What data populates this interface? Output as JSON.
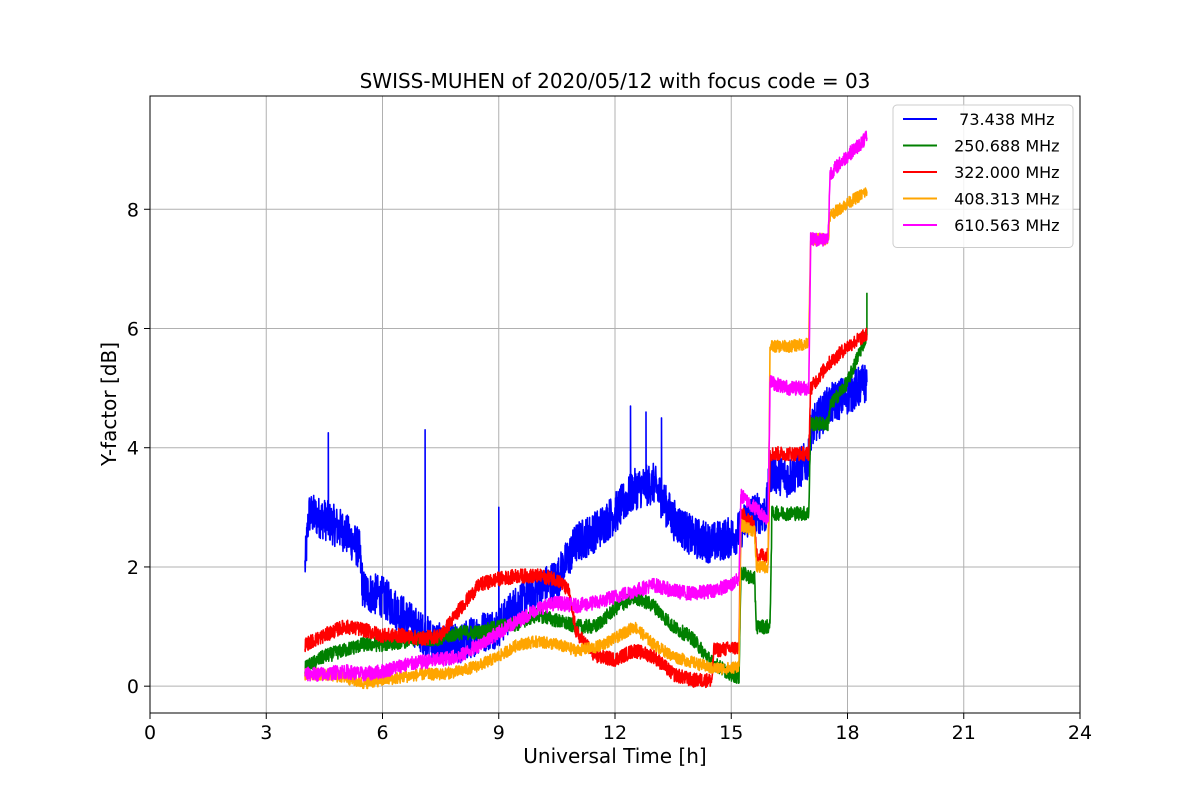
{
  "chart_data": {
    "type": "line",
    "title": "SWISS-MUHEN of 2020/05/12 with focus code = 03",
    "xlabel": "Universal Time [h]",
    "ylabel": "Y-factor [dB]",
    "xlim": [
      0,
      24
    ],
    "ylim": [
      -0.45,
      9.9
    ],
    "xticks": [
      0,
      3,
      6,
      9,
      12,
      15,
      18,
      21,
      24
    ],
    "yticks": [
      0,
      2,
      4,
      6,
      8
    ],
    "grid": true,
    "legend_position": "top-right",
    "series": [
      {
        "name": "  73.438 MHz",
        "color": "#0000ff",
        "noise": 0.35,
        "x": [
          4.0,
          4.1,
          4.5,
          5.0,
          5.4,
          5.5,
          6.0,
          6.5,
          7.0,
          7.5,
          8.0,
          8.5,
          9.0,
          9.5,
          10.0,
          10.5,
          11.0,
          11.5,
          12.0,
          12.5,
          13.0,
          13.5,
          14.0,
          14.5,
          15.0,
          15.2,
          15.5,
          15.9,
          16.0,
          16.5,
          17.0,
          17.05,
          17.5,
          18.0,
          18.5
        ],
        "y": [
          2.0,
          2.9,
          2.8,
          2.6,
          2.3,
          1.6,
          1.5,
          1.2,
          0.9,
          0.7,
          0.7,
          0.9,
          1.0,
          1.4,
          1.6,
          1.8,
          2.4,
          2.6,
          2.9,
          3.3,
          3.4,
          2.8,
          2.5,
          2.4,
          2.5,
          2.6,
          2.9,
          2.9,
          3.6,
          3.5,
          3.8,
          4.3,
          4.7,
          4.9,
          5.1
        ],
        "spikes": [
          [
            4.6,
            4.25
          ],
          [
            7.1,
            4.3
          ],
          [
            9.0,
            3.0
          ],
          [
            12.4,
            4.7
          ],
          [
            12.8,
            4.6
          ],
          [
            13.2,
            4.5
          ]
        ]
      },
      {
        "name": " 250.688 MHz",
        "color": "#008000",
        "noise": 0.12,
        "x": [
          4.0,
          4.5,
          5.0,
          5.5,
          6.0,
          6.5,
          7.0,
          7.5,
          8.0,
          8.5,
          9.0,
          9.5,
          10.0,
          10.5,
          11.0,
          11.5,
          12.0,
          12.5,
          13.0,
          13.5,
          14.0,
          14.5,
          15.0,
          15.2,
          15.25,
          15.6,
          15.65,
          16.0,
          16.05,
          16.5,
          17.0,
          17.05,
          17.5,
          17.55,
          18.0,
          18.5
        ],
        "y": [
          0.3,
          0.5,
          0.6,
          0.7,
          0.7,
          0.75,
          0.8,
          0.8,
          0.9,
          0.9,
          1.0,
          1.05,
          1.2,
          1.1,
          1.0,
          1.0,
          1.3,
          1.5,
          1.35,
          1.0,
          0.8,
          0.4,
          0.2,
          0.15,
          1.9,
          1.8,
          1.0,
          1.0,
          2.9,
          2.9,
          2.9,
          4.4,
          4.4,
          4.7,
          5.1,
          5.9
        ],
        "spikes": [
          [
            18.5,
            6.6
          ]
        ]
      },
      {
        "name": " 322.000 MHz",
        "color": "#ff0000",
        "noise": 0.12,
        "x": [
          4.0,
          4.5,
          5.0,
          5.5,
          6.0,
          6.5,
          7.0,
          7.5,
          8.0,
          8.5,
          9.0,
          9.5,
          10.0,
          10.5,
          10.8,
          11.0,
          11.5,
          12.0,
          12.5,
          13.0,
          13.5,
          14.0,
          14.5,
          14.55,
          15.2,
          15.25,
          15.6,
          15.65,
          15.95,
          16.0,
          16.5,
          17.0,
          17.05,
          17.5,
          18.0,
          18.5
        ],
        "y": [
          0.7,
          0.85,
          1.0,
          0.95,
          0.85,
          0.85,
          0.8,
          0.85,
          1.3,
          1.7,
          1.8,
          1.85,
          1.85,
          1.8,
          1.6,
          0.9,
          0.5,
          0.45,
          0.6,
          0.5,
          0.2,
          0.1,
          0.1,
          0.6,
          0.65,
          2.9,
          2.7,
          2.2,
          2.2,
          3.9,
          3.9,
          3.9,
          5.0,
          5.4,
          5.7,
          5.9
        ],
        "spikes": []
      },
      {
        "name": " 408.313 MHz",
        "color": "#ffa500",
        "noise": 0.1,
        "x": [
          4.0,
          4.5,
          5.0,
          5.5,
          6.0,
          6.5,
          7.0,
          7.5,
          8.0,
          8.5,
          9.0,
          9.5,
          10.0,
          10.5,
          11.0,
          11.5,
          12.0,
          12.5,
          13.0,
          13.5,
          14.0,
          14.5,
          15.0,
          15.2,
          15.25,
          15.6,
          15.65,
          15.95,
          16.0,
          16.5,
          17.0,
          17.05,
          17.5,
          17.55,
          18.0,
          18.5
        ],
        "y": [
          0.2,
          0.2,
          0.15,
          0.05,
          0.1,
          0.15,
          0.2,
          0.2,
          0.25,
          0.35,
          0.5,
          0.7,
          0.75,
          0.7,
          0.6,
          0.65,
          0.8,
          1.0,
          0.7,
          0.5,
          0.4,
          0.3,
          0.3,
          0.35,
          2.7,
          2.6,
          2.0,
          2.0,
          5.7,
          5.7,
          5.75,
          7.5,
          7.5,
          7.9,
          8.1,
          8.3
        ],
        "spikes": []
      },
      {
        "name": " 610.563 MHz",
        "color": "#ff00ff",
        "noise": 0.12,
        "x": [
          4.0,
          4.5,
          5.0,
          5.5,
          6.0,
          6.5,
          7.0,
          7.5,
          8.0,
          8.5,
          9.0,
          9.5,
          10.0,
          10.5,
          11.0,
          11.5,
          12.0,
          12.5,
          13.0,
          13.5,
          14.0,
          14.5,
          15.0,
          15.2,
          15.25,
          15.95,
          16.0,
          16.5,
          17.0,
          17.05,
          17.5,
          17.55,
          18.0,
          18.5
        ],
        "y": [
          0.2,
          0.2,
          0.25,
          0.2,
          0.25,
          0.35,
          0.4,
          0.45,
          0.5,
          0.7,
          0.9,
          1.1,
          1.3,
          1.4,
          1.35,
          1.4,
          1.5,
          1.6,
          1.7,
          1.6,
          1.55,
          1.6,
          1.7,
          1.8,
          3.2,
          2.8,
          5.1,
          5.0,
          5.0,
          7.5,
          7.5,
          8.6,
          8.9,
          9.2
        ],
        "spikes": []
      }
    ]
  }
}
